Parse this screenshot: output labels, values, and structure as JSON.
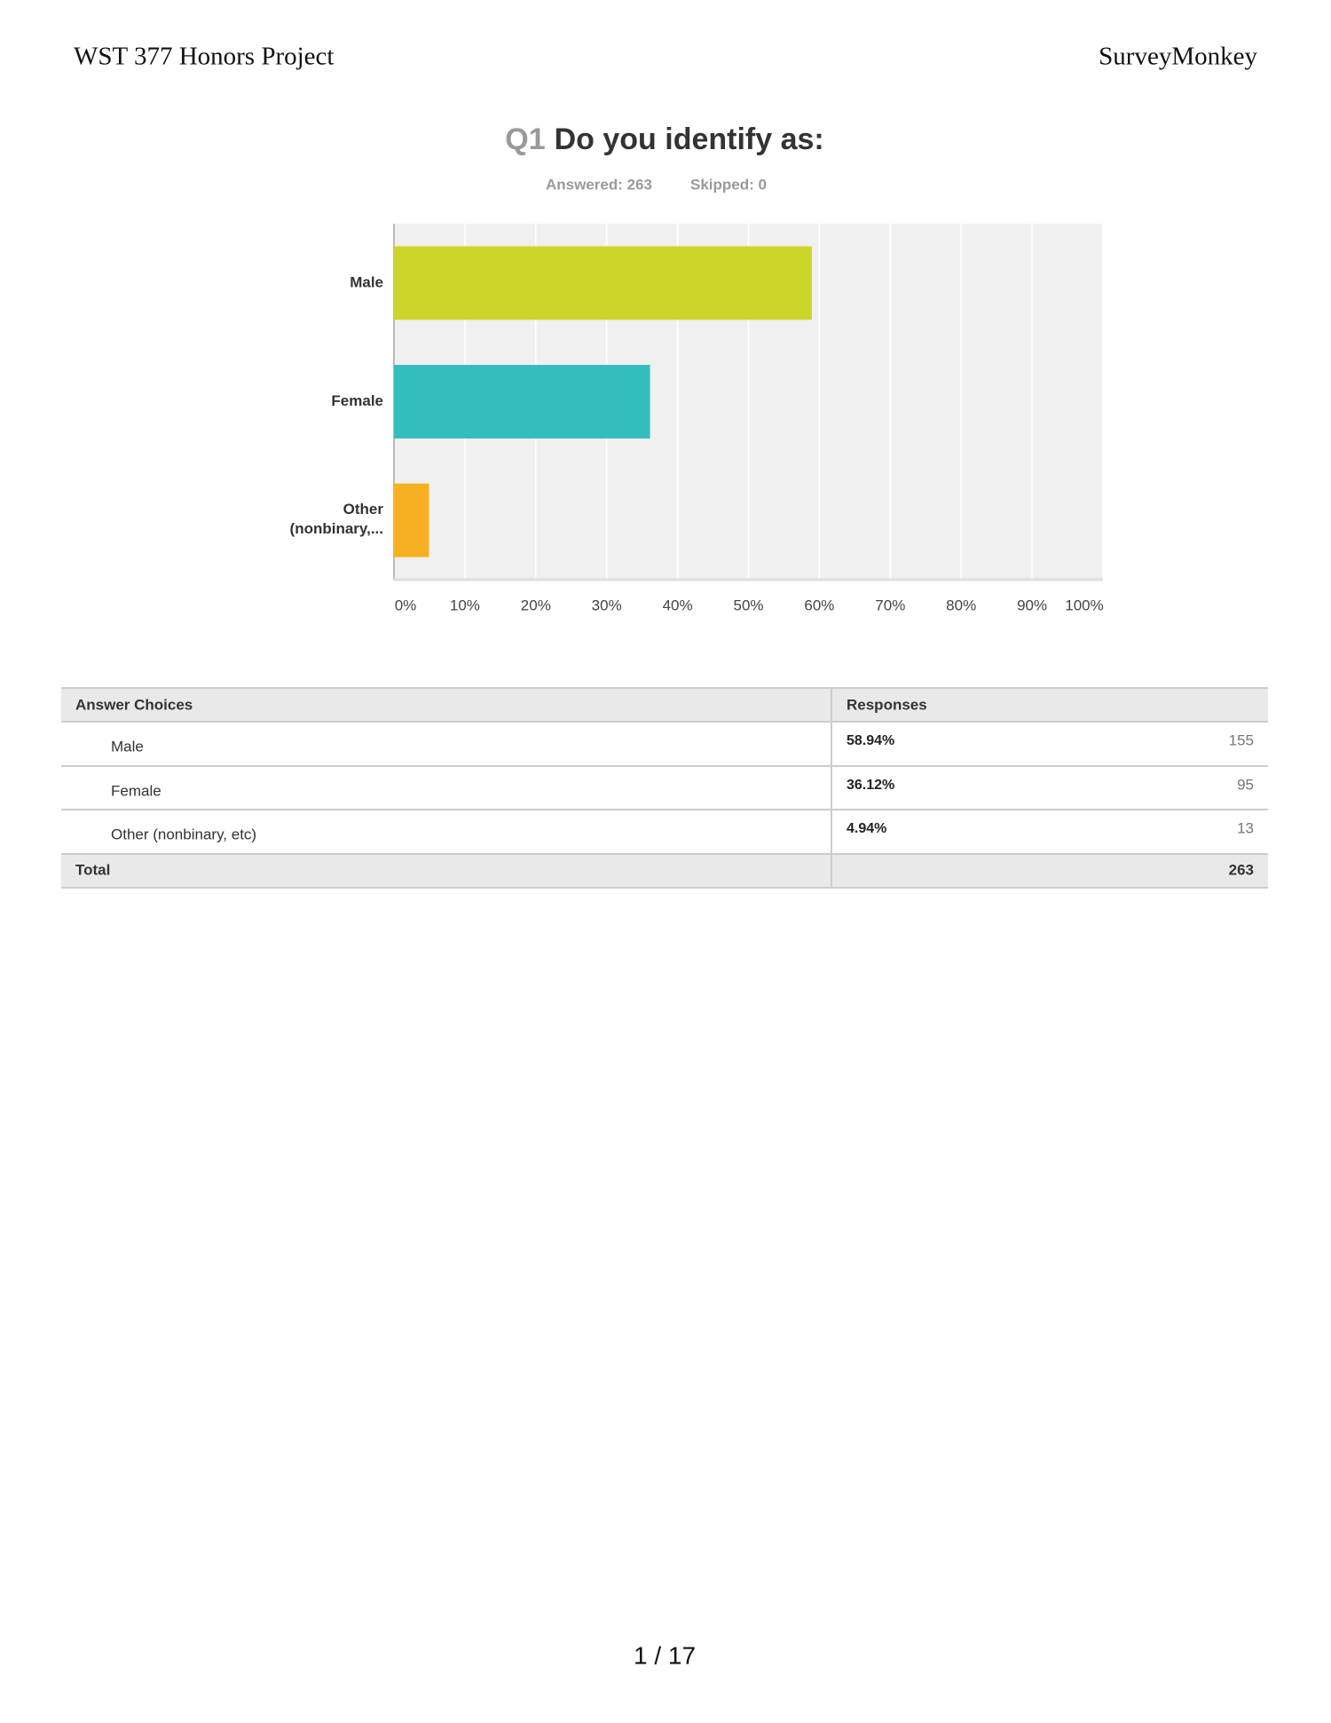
{
  "header": {
    "left": "WST 377 Honors Project",
    "right": "SurveyMonkey"
  },
  "chart_data": {
    "type": "bar",
    "orientation": "horizontal",
    "question_number": "Q1",
    "title": "Do you identify as:",
    "answered": "Answered: 263",
    "skipped": "Skipped: 0",
    "categories": [
      "Male",
      "Female",
      "Other (nonbinary,..."
    ],
    "values": [
      58.94,
      36.12,
      4.94
    ],
    "colors": [
      "#cdd52a",
      "#33bdbf",
      "#f7b022"
    ],
    "xlim": [
      0,
      100
    ],
    "xticks": [
      {
        "value": 0,
        "label": "0%"
      },
      {
        "value": 10,
        "label": "10%"
      },
      {
        "value": 20,
        "label": "20%"
      },
      {
        "value": 30,
        "label": "30%"
      },
      {
        "value": 40,
        "label": "40%"
      },
      {
        "value": 50,
        "label": "50%"
      },
      {
        "value": 60,
        "label": "60%"
      },
      {
        "value": 70,
        "label": "70%"
      },
      {
        "value": 80,
        "label": "80%"
      },
      {
        "value": 90,
        "label": "90%"
      },
      {
        "value": 100,
        "label": "100%"
      }
    ],
    "grid": true
  },
  "table": {
    "header": [
      "Answer Choices",
      "Responses"
    ],
    "rows": [
      [
        "Male",
        "58.94%",
        "155"
      ],
      [
        "Female",
        "36.12%",
        "95"
      ],
      [
        "Other (nonbinary, etc)",
        "4.94%",
        "13"
      ]
    ],
    "total": [
      "Total",
      "263"
    ]
  },
  "footer": {
    "page": "1 / 17"
  }
}
